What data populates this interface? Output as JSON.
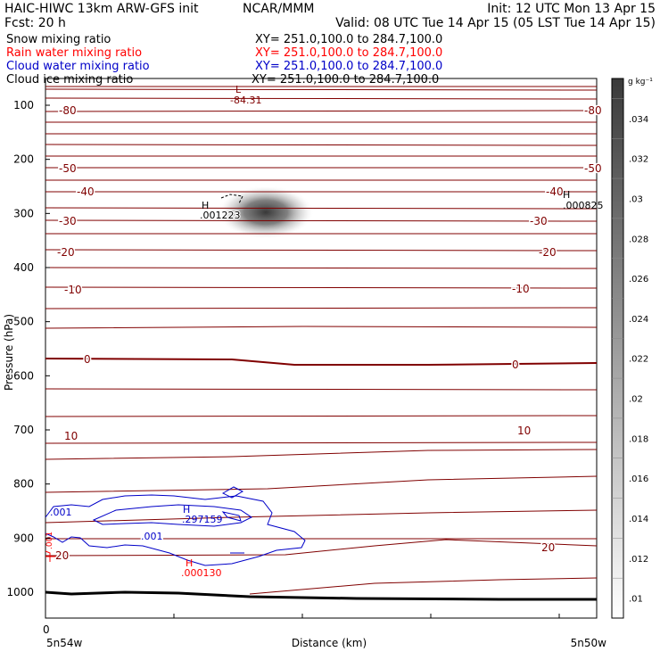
{
  "header": {
    "title": "HAIC-HIWC 13km ARW-GFS init",
    "org": "NCAR/MMM",
    "init": "Init: 12 UTC Mon 13 Apr 15",
    "fcst": "Fcst:   20 h",
    "valid": "Valid: 08 UTC Tue 14 Apr 15 (05 LST Tue 14 Apr 15)"
  },
  "fields": [
    {
      "label": "Snow mixing ratio",
      "xy": "XY= 251.0,100.0 to 284.7,100.0",
      "color": "#000000"
    },
    {
      "label": "Rain water mixing ratio",
      "xy": "XY= 251.0,100.0 to 284.7,100.0",
      "color": "#ff0000"
    },
    {
      "label": "Cloud water mixing ratio",
      "xy": "XY= 251.0,100.0 to 284.7,100.0",
      "color": "#0000c8"
    },
    {
      "label": "Cloud ice mixing ratio",
      "xy": "XY= 251.0,100.0 to 284.7,100.0",
      "color": "#000000"
    }
  ],
  "chart_data": {
    "type": "contour",
    "ylabel": "Pressure (hPa)",
    "xlabel": "Distance (km)",
    "ylim": [
      1050,
      50
    ],
    "yticks": [
      100,
      200,
      300,
      400,
      500,
      600,
      700,
      800,
      900,
      1000
    ],
    "xtick_zero": "0",
    "x_left_label": "5n54w",
    "x_right_label": "5n50w",
    "colorbar": {
      "unit": "g kg⁻¹",
      "ticks": [
        ".01",
        ".012",
        ".014",
        ".016",
        ".018",
        ".02",
        ".022",
        ".024",
        ".026",
        ".028",
        ".03",
        ".032",
        ".034"
      ]
    },
    "isotherm_labels": [
      "-80",
      "-50",
      "-40",
      "-30",
      "-20",
      "-10",
      "0",
      "10",
      "20"
    ],
    "annotations": [
      {
        "marker": "L",
        "value": "-84.31",
        "color": "#800000"
      },
      {
        "marker": "H",
        "value": ".001223",
        "color": "#000000"
      },
      {
        "marker": "H",
        "value": ".000825",
        "color": "#000000"
      },
      {
        "marker": "H",
        "value": ".297159",
        "color": "#0000c8"
      },
      {
        "marker": "H",
        "value": ".000130",
        "color": "#ff0000"
      }
    ],
    "cloud_water_labels": [
      ".001",
      ".001"
    ],
    "rain_label": ".001",
    "colors": {
      "isotherm": "#800000",
      "cloud_water": "#0000c8",
      "rain": "#ff0000",
      "terrain": "#000000"
    }
  }
}
